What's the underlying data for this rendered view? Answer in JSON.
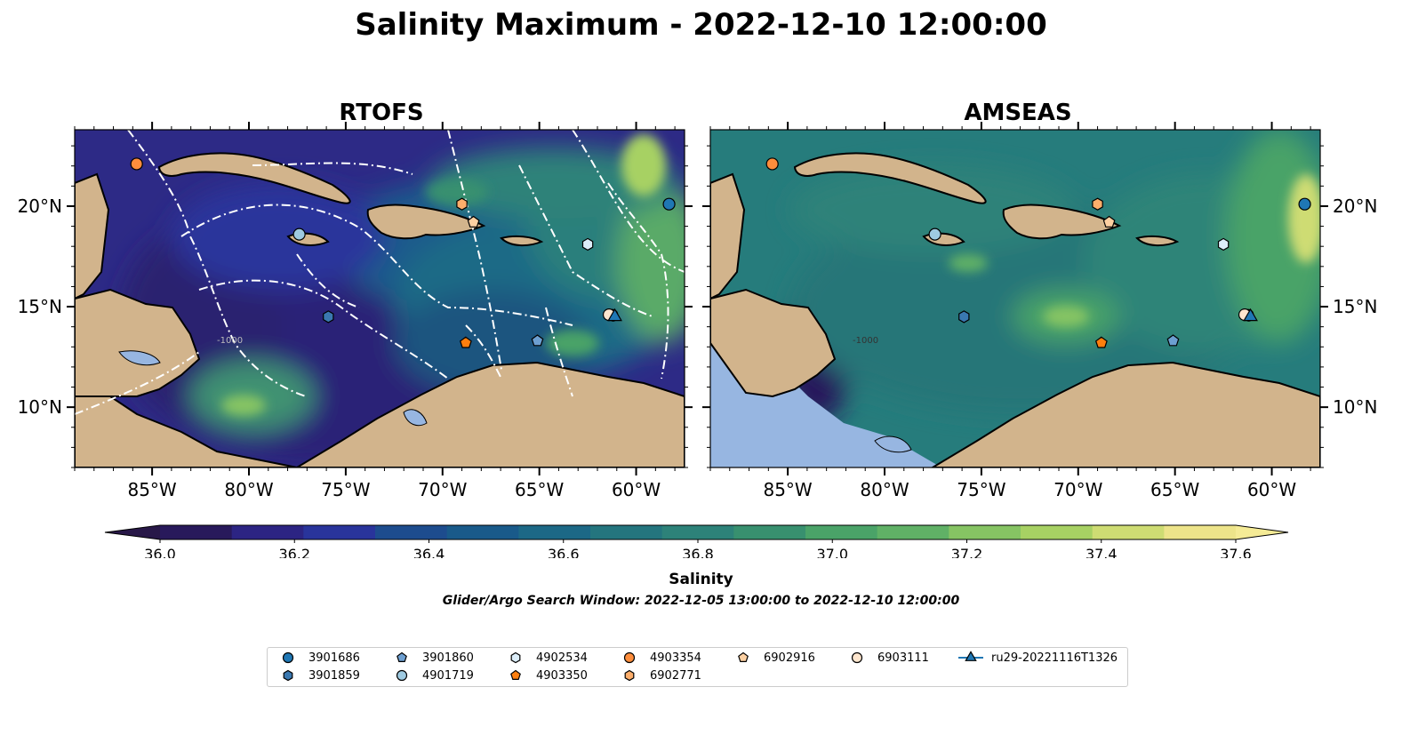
{
  "title": "Salinity Maximum - 2022-12-10 12:00:00",
  "panels": [
    {
      "id": "rtofs",
      "title": "RTOFS"
    },
    {
      "id": "amseas",
      "title": "AMSEAS"
    }
  ],
  "map": {
    "lon_range": [
      -89.0,
      -57.5
    ],
    "lat_range": [
      7.0,
      23.8
    ],
    "lon_ticks": [
      -85,
      -80,
      -75,
      -70,
      -65,
      -60
    ],
    "lon_tick_labels": [
      "85°W",
      "80°W",
      "75°W",
      "70°W",
      "65°W",
      "60°W"
    ],
    "lat_ticks": [
      10,
      15,
      20
    ],
    "lat_tick_labels": [
      "10°N",
      "15°N",
      "20°N"
    ],
    "land_color": "#d2b48c",
    "lake_color": "#97b6e1",
    "contour_label": "-1000"
  },
  "colorbar": {
    "label": "Salinity",
    "min": 36.0,
    "max": 37.6,
    "step": 0.1,
    "extend": "both",
    "ticks": [
      "36.0",
      "36.2",
      "36.4",
      "36.6",
      "36.8",
      "37.0",
      "37.2",
      "37.4",
      "37.6"
    ],
    "colors": [
      "#28195b",
      "#2c2483",
      "#29349b",
      "#1d4c8e",
      "#195a8a",
      "#1c6886",
      "#24757e",
      "#2d8279",
      "#38906f",
      "#4aa368",
      "#60b166",
      "#86c463",
      "#a7d163",
      "#cedc73",
      "#ede48a"
    ],
    "under_color": "#281848",
    "over_color": "#f5eb96"
  },
  "search_window": "Glider/Argo Search Window: 2022-12-05 13:00:00 to 2022-12-10 12:00:00",
  "floats": [
    {
      "id": "3901686",
      "marker": "circle",
      "color": "#1f77b4",
      "lon": -58.3,
      "lat": 20.1
    },
    {
      "id": "3901859",
      "marker": "hexagon",
      "color": "#3a78b0",
      "lon": -75.9,
      "lat": 14.5
    },
    {
      "id": "3901860",
      "marker": "pentagon",
      "color": "#6d9fd1",
      "lon": -65.1,
      "lat": 13.3
    },
    {
      "id": "4901719",
      "marker": "circle",
      "color": "#9ecae1",
      "lon": -77.4,
      "lat": 18.6
    },
    {
      "id": "4902534",
      "marker": "hexagon",
      "color": "#dceefa",
      "lon": -62.5,
      "lat": 18.1
    },
    {
      "id": "4903350",
      "marker": "pentagon",
      "color": "#ff7f0e",
      "lon": -68.8,
      "lat": 13.2
    },
    {
      "id": "4903354",
      "marker": "circle",
      "color": "#fd8d3c",
      "lon": -85.8,
      "lat": 22.1
    },
    {
      "id": "6902771",
      "marker": "hexagon",
      "color": "#fdae6b",
      "lon": -69.0,
      "lat": 20.1
    },
    {
      "id": "6902916",
      "marker": "pentagon",
      "color": "#fdd0a2",
      "lon": -68.4,
      "lat": 19.2
    },
    {
      "id": "6903111",
      "marker": "circle",
      "color": "#fee6ce",
      "lon": -61.4,
      "lat": 14.6
    }
  ],
  "gliders": [
    {
      "id": "ru29-20221116T1326",
      "marker": "triangle",
      "color": "#1f77b4",
      "lon": -61.1,
      "lat": 14.5
    }
  ]
}
